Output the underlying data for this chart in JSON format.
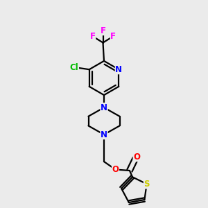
{
  "background_color": "#ebebeb",
  "bond_color": "#000000",
  "bond_width": 1.6,
  "atom_colors": {
    "N": "#0000ff",
    "O": "#ff0000",
    "S": "#cccc00",
    "Cl": "#00bb00",
    "F": "#ff00ff"
  },
  "font_size_atom": 8.5
}
